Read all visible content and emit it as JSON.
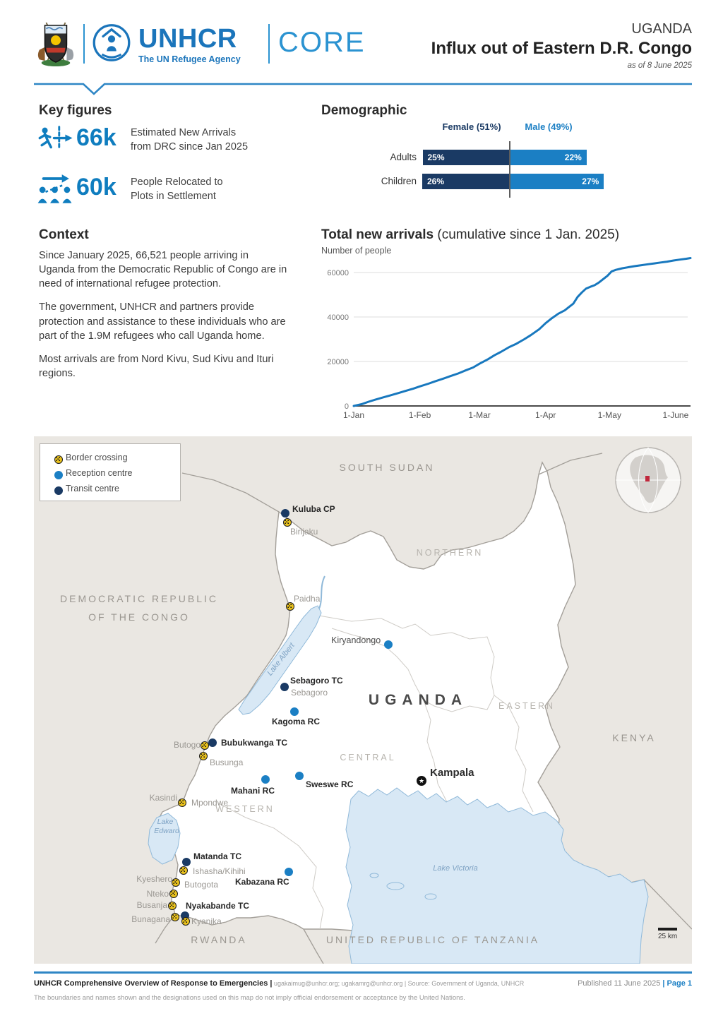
{
  "header": {
    "brand_unhcr": "UNHCR",
    "brand_tagline": "The UN Refugee Agency",
    "brand_core": "CORE",
    "country": "UGANDA",
    "title": "Influx out of Eastern D.R. Congo",
    "as_of": "as of 8 June 2025"
  },
  "key_figures": {
    "heading": "Key figures",
    "items": [
      {
        "value": "66k",
        "line1": "Estimated New Arrivals",
        "line2": "from DRC since Jan 2025"
      },
      {
        "value": "60k",
        "line1": "People Relocated to",
        "line2": "Plots in Settlement"
      }
    ]
  },
  "context": {
    "heading": "Context",
    "paragraphs": [
      "Since January 2025, 66,521 people arriving in Uganda from the Democratic Republic of Congo are in need of international refugee protection.",
      "The government, UNHCR and partners provide protection and assistance to these individuals who are part of the 1.9M refugees who call Uganda home.",
      "Most arrivals are from Nord Kivu, Sud Kivu and Ituri regions."
    ]
  },
  "demographic": {
    "heading": "Demographic",
    "legend": [
      {
        "label": "Female (51%)",
        "color": "#1a3a64"
      },
      {
        "label": "Male (49%)",
        "color": "#1b7fc4"
      }
    ],
    "rows": [
      {
        "label": "Adults",
        "female_pct": 25,
        "male_pct": 22,
        "female_text": "25%",
        "male_text": "22%"
      },
      {
        "label": "Children",
        "female_pct": 26,
        "male_pct": 27,
        "female_text": "26%",
        "male_text": "27%"
      }
    ]
  },
  "chart_data": {
    "type": "line",
    "title": "Total new arrivals",
    "subtitle": "(cumulative since 1 Jan. 2025)",
    "ylabel": "Number of people",
    "x_ticks": [
      "1-Jan",
      "1-Feb",
      "1-Mar",
      "1-Apr",
      "1-May",
      "1-June"
    ],
    "x_tick_days": [
      0,
      31,
      59,
      90,
      120,
      151
    ],
    "y_ticks": [
      0,
      20000,
      40000,
      60000
    ],
    "y_tick_labels": [
      "0",
      "20000",
      "40000",
      "60000"
    ],
    "ylim": [
      0,
      66500
    ],
    "line_color": "#1878be",
    "points": [
      [
        0,
        0
      ],
      [
        4,
        900
      ],
      [
        7,
        1900
      ],
      [
        10,
        2800
      ],
      [
        14,
        3900
      ],
      [
        17,
        4700
      ],
      [
        21,
        5800
      ],
      [
        24,
        6700
      ],
      [
        28,
        7800
      ],
      [
        31,
        8800
      ],
      [
        35,
        10000
      ],
      [
        38,
        11000
      ],
      [
        42,
        12300
      ],
      [
        45,
        13300
      ],
      [
        49,
        14600
      ],
      [
        52,
        15800
      ],
      [
        56,
        17300
      ],
      [
        59,
        19000
      ],
      [
        63,
        21000
      ],
      [
        66,
        22800
      ],
      [
        69,
        24300
      ],
      [
        73,
        26500
      ],
      [
        76,
        27800
      ],
      [
        80,
        30000
      ],
      [
        83,
        31800
      ],
      [
        87,
        34500
      ],
      [
        90,
        37200
      ],
      [
        93,
        39500
      ],
      [
        96,
        41500
      ],
      [
        99,
        43000
      ],
      [
        101,
        44500
      ],
      [
        103,
        46000
      ],
      [
        105,
        49000
      ],
      [
        107,
        51000
      ],
      [
        109,
        52800
      ],
      [
        111,
        53600
      ],
      [
        113,
        54300
      ],
      [
        115,
        55500
      ],
      [
        117,
        57000
      ],
      [
        119,
        58500
      ],
      [
        121,
        60500
      ],
      [
        123,
        61200
      ],
      [
        126,
        61900
      ],
      [
        129,
        62400
      ],
      [
        132,
        62900
      ],
      [
        135,
        63300
      ],
      [
        138,
        63700
      ],
      [
        141,
        64100
      ],
      [
        144,
        64500
      ],
      [
        147,
        64900
      ],
      [
        150,
        65400
      ],
      [
        153,
        65800
      ],
      [
        156,
        66200
      ],
      [
        158,
        66500
      ]
    ]
  },
  "map": {
    "legend": {
      "items": [
        {
          "label": "Border crossing",
          "type": "border-crossing"
        },
        {
          "label": "Reception centre",
          "type": "reception-centre"
        },
        {
          "label": "Transit centre",
          "type": "transit-centre"
        }
      ]
    },
    "labels": {
      "south_sudan": "SOUTH SUDAN",
      "drc1": "DEMOCRATIC REPUBLIC",
      "drc2": "OF THE CONGO",
      "kenya": "KENYA",
      "rwanda": "RWANDA",
      "tanzania": "UNITED REPUBLIC OF TANZANIA",
      "uganda": "UGANDA",
      "northern": "NORTHERN",
      "eastern": "EASTERN",
      "central": "CENTRAL",
      "western": "WESTERN",
      "lake_albert": "Lake Albert",
      "lake_edward1": "Lake",
      "lake_edward2": "Edward",
      "lake_victoria": "Lake Victoria",
      "kampala": "Kampala",
      "scale": "25 km",
      "kuluba": "Kuluba CP",
      "birijaku": "Birijaku",
      "paidha": "Paidha",
      "kiryandongo": "Kiryandongo",
      "sebagoro_tc": "Sebagoro TC",
      "sebagoro": "Sebagoro",
      "kagoma": "Kagoma RC",
      "bubukwanga": "Bubukwanga TC",
      "butogo": "Butogo",
      "busunga": "Busunga",
      "kasindi": "Kasindi",
      "mpondwe": "Mpondwe",
      "mahani": "Mahani RC",
      "sweswe": "Sweswe RC",
      "matanda": "Matanda TC",
      "ishasha": "Ishasha/Kihihi",
      "kyeshero": "Kyeshero",
      "butogota": "Butogota",
      "nteko": "Nteko",
      "busanja": "Busanja",
      "nyakabande": "Nyakabande TC",
      "bunagana": "Bunagana",
      "kyanika": "Kyanika",
      "kabazana": "Kabazana RC"
    }
  },
  "footer": {
    "line1_bold": "UNHCR Comprehensive Overview of Response to Emergencies |",
    "line1_rest": " ugakaimug@unhcr.org; ugakamrg@unhcr.org | Source: Government of Uganda, UNHCR",
    "published": "Published 11 June 2025",
    "page": "Page 1",
    "disclaimer": "The boundaries and names shown and the designations used on this map do not imply official endorsement or acceptance by the United Nations."
  }
}
